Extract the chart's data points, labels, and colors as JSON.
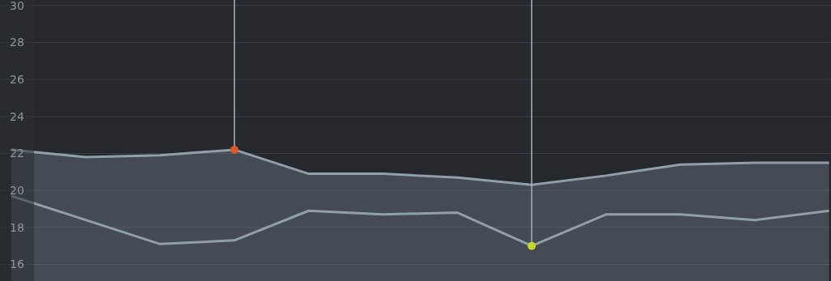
{
  "chart_data": {
    "type": "area",
    "categories": [
      null,
      null,
      null,
      null,
      null,
      null,
      null,
      null,
      null,
      null,
      null,
      null
    ],
    "ylim": [
      15.1,
      30.3
    ],
    "yticks": [
      16,
      18,
      20,
      22,
      24,
      26,
      28,
      30
    ],
    "grid": "y",
    "series": [
      {
        "color": "#8fa0a8",
        "values": [
          22.2,
          21.8,
          21.9,
          22.2,
          20.9,
          20.9,
          20.7,
          20.3,
          20.8,
          21.4,
          21.5,
          21.5
        ]
      },
      {
        "type": "line",
        "color": "#8fa0a8",
        "values": [
          19.7,
          18.4,
          17.1,
          17.3,
          18.9,
          18.7,
          18.8,
          17.0,
          18.7,
          18.7,
          18.4,
          18.9
        ]
      },
      {
        "type": "scatter",
        "color": "#e0562b",
        "values": [
          null,
          null,
          null,
          22.2,
          null,
          null,
          null,
          null,
          null,
          null,
          null,
          null
        ]
      },
      {
        "type": "scatter",
        "color": "#c5d62a",
        "values": [
          null,
          null,
          null,
          null,
          null,
          null,
          null,
          17.0,
          null,
          null,
          null,
          null
        ]
      }
    ]
  }
}
